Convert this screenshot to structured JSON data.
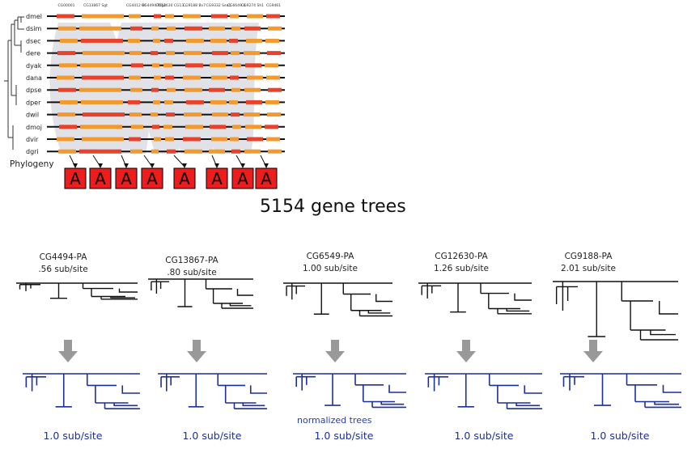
{
  "headline": "5154 gene trees",
  "phylogeny_label": "Phylogeny",
  "species": [
    "dmel",
    "dsim",
    "dsec",
    "dere",
    "dyak",
    "dana",
    "dpse",
    "dper",
    "dwil",
    "dmoj",
    "dvir",
    "dgri"
  ],
  "gene_columns": [
    "CG00001",
    "CG13867 Sgt",
    "CG4412 Bt",
    "CG4494 Rfg4",
    "CG12630 CG13... ",
    "CG9188 Bv7",
    "CG9332 Sea1",
    "CG6649 4",
    "CG9274 Sh1",
    "CG9461"
  ],
  "alignment_box_letter": "A",
  "box_count": 8,
  "colors": {
    "orange": "#f29a2e",
    "red": "#e8432a",
    "navy": "#1d2f9a",
    "arrow": "#999999"
  },
  "trees": [
    {
      "name": "CG4494-PA",
      "rate": ".56 sub/site"
    },
    {
      "name": "CG13867-PA",
      "rate": ".80 sub/site"
    },
    {
      "name": "CG6549-PA",
      "rate": "1.00 sub/site"
    },
    {
      "name": "CG12630-PA",
      "rate": "1.26 sub/site"
    },
    {
      "name": "CG9188-PA",
      "rate": "2.01 sub/site"
    }
  ],
  "normalized_label": "normalized trees",
  "normalized_rate": "1.0 sub/site"
}
